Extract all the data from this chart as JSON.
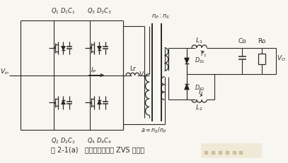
{
  "bg_color": "#f8f6f0",
  "line_color": "#2a2a2a",
  "text_color": "#2a2a2a",
  "fig_width": 4.07,
  "fig_height": 2.32,
  "dpi": 100,
  "caption": "图 2-1(a)   改进型移相全桥 ZVS 主电路",
  "xlim": [
    0,
    100
  ],
  "ylim": [
    0,
    55
  ]
}
